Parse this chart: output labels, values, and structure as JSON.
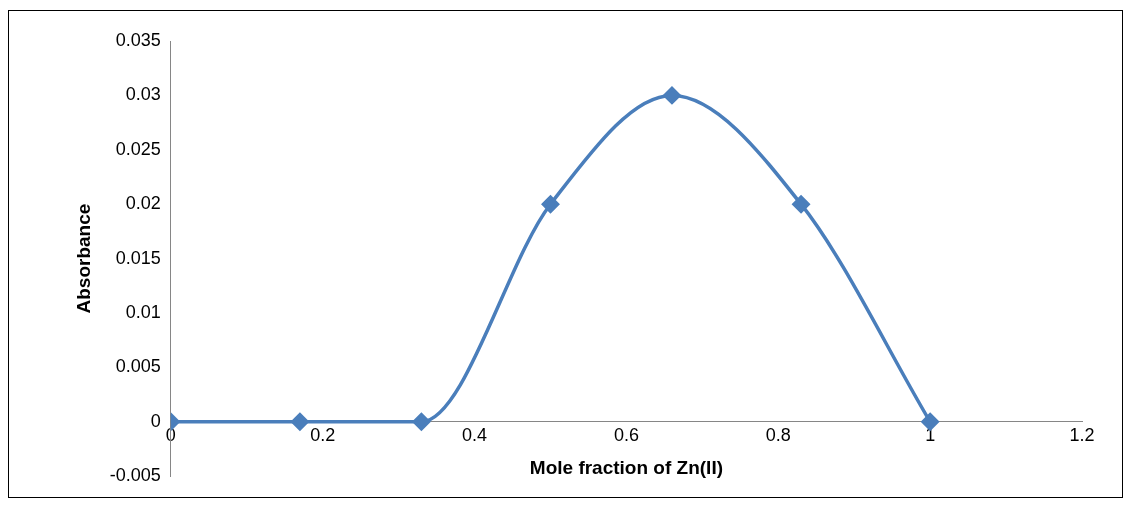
{
  "chart_data": {
    "type": "line",
    "xlabel": "Mole fraction of Zn(II)",
    "ylabel": "Absorbance",
    "x": [
      0,
      0.17,
      0.33,
      0.5,
      0.66,
      0.83,
      1
    ],
    "series": [
      {
        "color": "#4a7ebb",
        "values": [
          0,
          0,
          0,
          0.02,
          0.03,
          0.02,
          0
        ]
      }
    ],
    "xlim": [
      0,
      1.2
    ],
    "xticks": [
      0,
      0.2,
      0.4,
      0.6,
      0.8,
      1,
      1.2
    ],
    "ylim": [
      -0.005,
      0.035
    ],
    "yticks": [
      -0.005,
      0,
      0.005,
      0.01,
      0.015,
      0.02,
      0.025,
      0.03,
      0.035
    ],
    "grid": false,
    "legend": false,
    "marker": "diamond",
    "line_style": "solid"
  }
}
